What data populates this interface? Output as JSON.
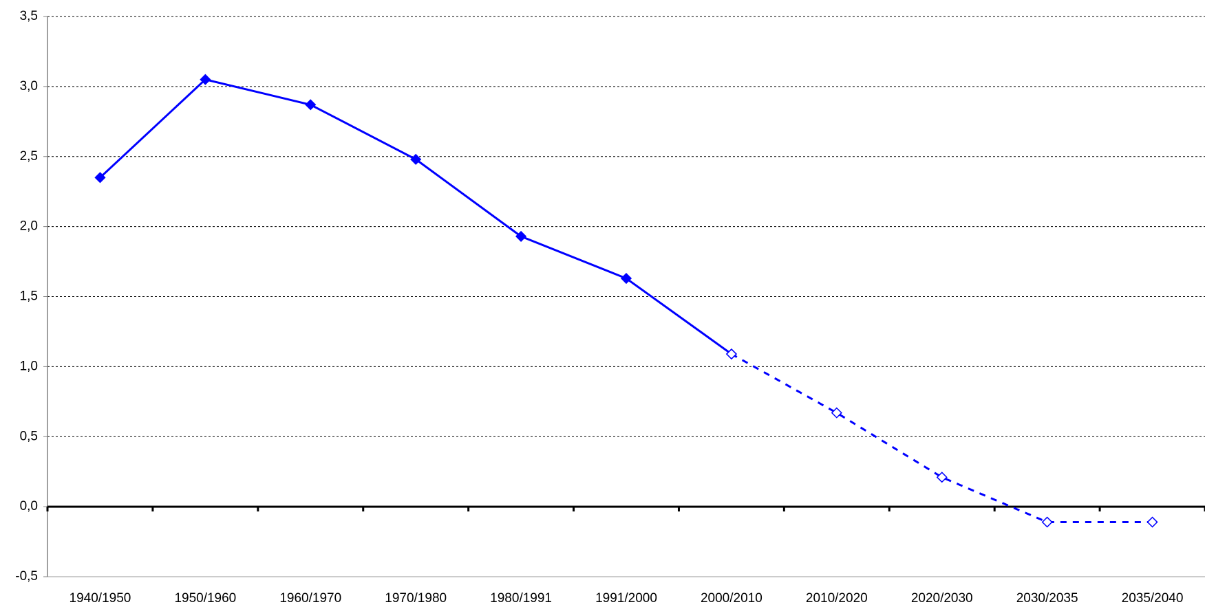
{
  "chart_data": {
    "type": "line",
    "categories": [
      "1940/1950",
      "1950/1960",
      "1960/1970",
      "1970/1980",
      "1980/1991",
      "1991/2000",
      "2000/2010",
      "2010/2020",
      "2020/2030",
      "2030/2035",
      "2035/2040"
    ],
    "series": [
      {
        "color": "#0000ff",
        "dashed": false,
        "filled_markers": true,
        "values": [
          2.35,
          3.05,
          2.87,
          2.48,
          1.93,
          1.63,
          1.09,
          null,
          null,
          null,
          null
        ]
      },
      {
        "color": "#0000ff",
        "dashed": true,
        "filled_markers": false,
        "values": [
          null,
          null,
          null,
          null,
          null,
          null,
          1.09,
          0.67,
          0.21,
          -0.11,
          -0.11
        ]
      }
    ],
    "ylim": [
      -0.5,
      3.5
    ],
    "yticks": [
      {
        "value": -0.5,
        "label": "-0,5"
      },
      {
        "value": 0,
        "label": "0,0"
      },
      {
        "value": 0.5,
        "label": "0,5"
      },
      {
        "value": 1,
        "label": "1,0"
      },
      {
        "value": 1.5,
        "label": "1,5"
      },
      {
        "value": 2,
        "label": "2,0"
      },
      {
        "value": 2.5,
        "label": "2,5"
      },
      {
        "value": 3,
        "label": "3,0"
      },
      {
        "value": 3.5,
        "label": "3,5"
      }
    ],
    "grid": true
  }
}
